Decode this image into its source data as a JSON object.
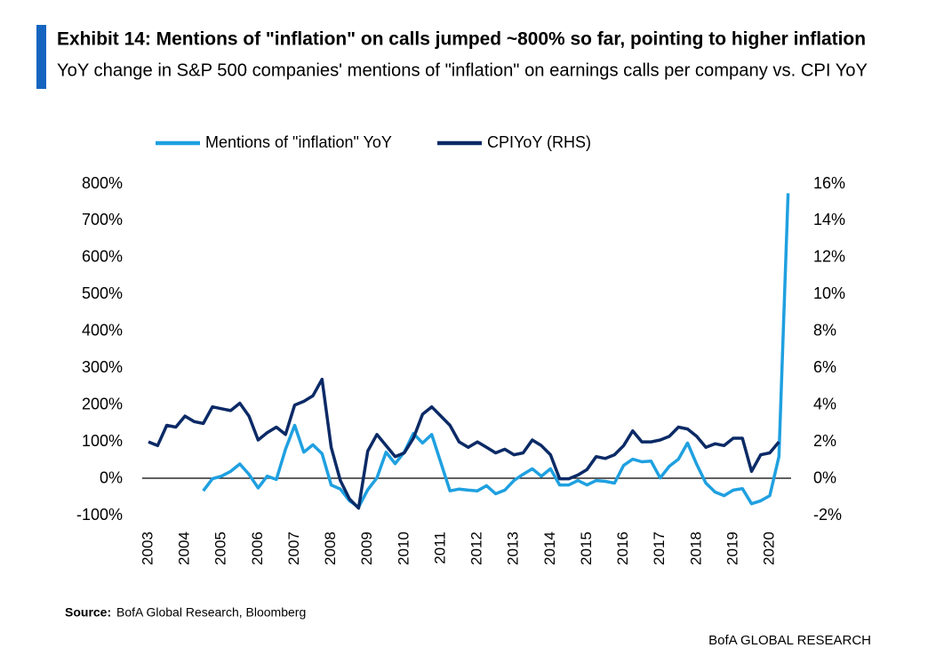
{
  "chart_data": {
    "type": "line",
    "title": "Exhibit 14: Mentions of \"inflation\" on calls jumped ~800% so far, pointing to higher inflation",
    "subtitle": "YoY change in S&P 500 companies' mentions of \"inflation\" on earnings calls per company vs. CPI YoY",
    "source_label": "Source:",
    "source_text": "BofA Global Research, Bloomberg",
    "footer": "BofA GLOBAL RESEARCH",
    "categories": [
      "2003",
      null,
      null,
      null,
      "2004",
      null,
      null,
      null,
      "2005",
      null,
      null,
      null,
      "2006",
      null,
      null,
      null,
      "2007",
      null,
      null,
      null,
      "2008",
      null,
      null,
      null,
      "2009",
      null,
      null,
      null,
      "2010",
      null,
      null,
      null,
      "2011",
      null,
      null,
      null,
      "2012",
      null,
      null,
      null,
      "2013",
      null,
      null,
      null,
      "2014",
      null,
      null,
      null,
      "2015",
      null,
      null,
      null,
      "2016",
      null,
      null,
      null,
      "2017",
      null,
      null,
      null,
      "2018",
      null,
      null,
      null,
      "2019",
      null,
      null,
      null,
      "2020",
      null,
      null
    ],
    "series": [
      {
        "name": "Mentions of \"inflation\" YoY",
        "color": "#1fa0e0",
        "axis": "y",
        "values": [
          null,
          null,
          null,
          null,
          null,
          null,
          -33,
          0,
          7,
          20,
          40,
          12,
          -25,
          7,
          -2,
          80,
          145,
          72,
          92,
          68,
          -17,
          -28,
          -60,
          -77,
          -30,
          2,
          72,
          41,
          72,
          123,
          97,
          120,
          43,
          -33,
          -28,
          -31,
          -33,
          -19,
          -41,
          -31,
          -5,
          12,
          27,
          7,
          27,
          -17,
          -17,
          -5,
          -17,
          -5,
          -7,
          -12,
          36,
          53,
          46,
          48,
          2,
          34,
          53,
          97,
          39,
          -12,
          -36,
          -46,
          -31,
          -27,
          -68,
          -60,
          -46,
          60,
          775
        ]
      },
      {
        "name": "CPIYoY (RHS)",
        "color": "#0b2a66",
        "axis": "y2",
        "values": [
          2.0,
          1.8,
          2.9,
          2.8,
          3.4,
          3.1,
          3.0,
          3.9,
          3.8,
          3.7,
          4.1,
          3.4,
          2.1,
          2.5,
          2.8,
          2.4,
          4.0,
          4.2,
          4.5,
          5.4,
          1.7,
          -0.1,
          -1.1,
          -1.6,
          1.5,
          2.4,
          1.8,
          1.2,
          1.4,
          2.2,
          3.5,
          3.9,
          3.4,
          2.9,
          2.0,
          1.7,
          2.0,
          1.7,
          1.4,
          1.6,
          1.3,
          1.4,
          2.1,
          1.8,
          1.3,
          0.0,
          0.0,
          0.2,
          0.5,
          1.2,
          1.1,
          1.3,
          1.8,
          2.6,
          2.0,
          2.0,
          2.1,
          2.3,
          2.8,
          2.7,
          2.3,
          1.7,
          1.9,
          1.8,
          2.2,
          2.2,
          0.4,
          1.3,
          1.4,
          2.0,
          null
        ]
      }
    ],
    "ylim": [
      -100,
      800
    ],
    "yticks": [
      {
        "value": -100,
        "label": "-100%"
      },
      {
        "value": 0,
        "label": "0%"
      },
      {
        "value": 100,
        "label": "100%"
      },
      {
        "value": 200,
        "label": "200%"
      },
      {
        "value": 300,
        "label": "300%"
      },
      {
        "value": 400,
        "label": "400%"
      },
      {
        "value": 500,
        "label": "500%"
      },
      {
        "value": 600,
        "label": "600%"
      },
      {
        "value": 700,
        "label": "700%"
      },
      {
        "value": 800,
        "label": "800%"
      }
    ],
    "y2lim": [
      -2,
      16
    ],
    "y2ticks": [
      {
        "value": -2,
        "label": "-2%"
      },
      {
        "value": 0,
        "label": "0%"
      },
      {
        "value": 2,
        "label": "2%"
      },
      {
        "value": 4,
        "label": "4%"
      },
      {
        "value": 6,
        "label": "6%"
      },
      {
        "value": 8,
        "label": "8%"
      },
      {
        "value": 10,
        "label": "10%"
      },
      {
        "value": 12,
        "label": "12%"
      },
      {
        "value": 14,
        "label": "14%"
      },
      {
        "value": 16,
        "label": "16%"
      }
    ],
    "grid": false
  }
}
